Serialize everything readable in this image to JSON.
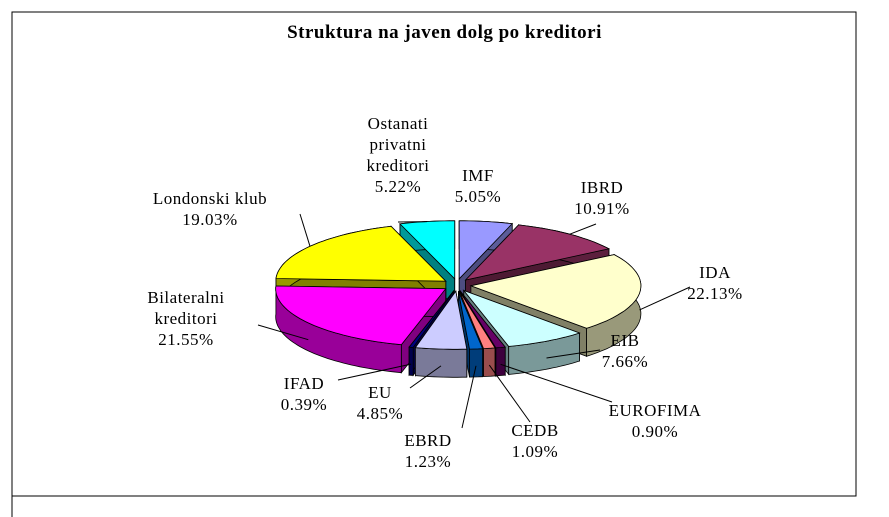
{
  "chart_data": {
    "type": "pie3d",
    "title": "Struktura na javen dolg po kreditori",
    "categories": [
      "IMF",
      "IBRD",
      "IDA",
      "EIB",
      "EUROFIMA",
      "CEDB",
      "EBRD",
      "EU",
      "IFAD",
      "Bilateralni kreditori",
      "Londonski klub",
      "Ostanati privatni kreditori"
    ],
    "values": [
      5.05,
      10.91,
      22.13,
      7.66,
      0.9,
      1.09,
      1.23,
      4.85,
      0.39,
      21.55,
      19.03,
      5.22
    ],
    "value_labels": [
      "5.05%",
      "10.91%",
      "22.13%",
      "7.66%",
      "0.90%",
      "1.09%",
      "1.23%",
      "4.85%",
      "0.39%",
      "21.55%",
      "19.03%",
      "5.22%"
    ],
    "colors": [
      "#9999ff",
      "#993366",
      "#ffffcc",
      "#ccffff",
      "#660066",
      "#ff8080",
      "#0066cc",
      "#ccccff",
      "#000080",
      "#ff00ff",
      "#ffff00",
      "#00ffff"
    ]
  }
}
